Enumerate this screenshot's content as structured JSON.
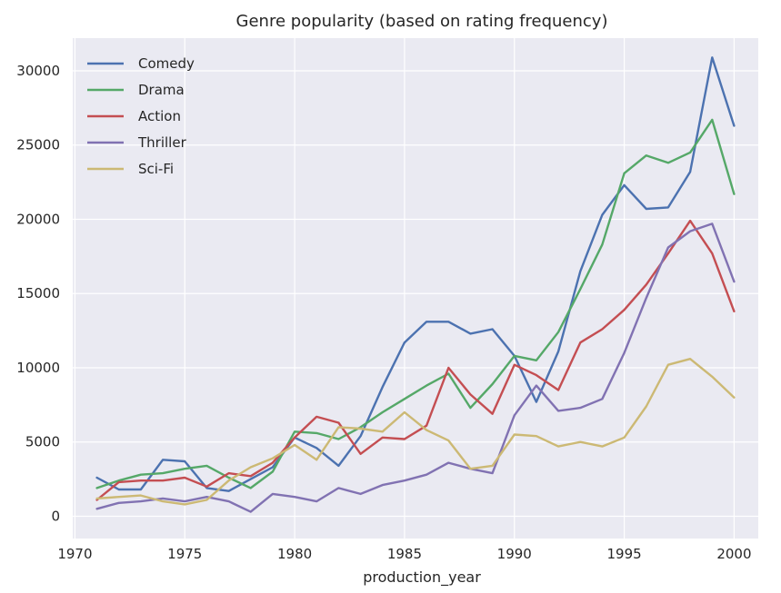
{
  "chart_data": {
    "type": "line",
    "title": "Genre popularity (based on rating frequency)",
    "xlabel": "production_year",
    "ylabel": "",
    "xlim": [
      1969.9,
      2001.1
    ],
    "ylim": [
      -1500,
      32200
    ],
    "xticks": [
      1970,
      1975,
      1980,
      1985,
      1990,
      1995,
      2000
    ],
    "xtick_labels": [
      "1970",
      "1975",
      "1980",
      "1985",
      "1990",
      "1995",
      "2000"
    ],
    "yticks": [
      0,
      5000,
      10000,
      15000,
      20000,
      25000,
      30000
    ],
    "ytick_labels": [
      "0",
      "5000",
      "10000",
      "15000",
      "20000",
      "25000",
      "30000"
    ],
    "grid": true,
    "legend_position": "top-left",
    "x": [
      1971,
      1972,
      1973,
      1974,
      1975,
      1976,
      1977,
      1978,
      1979,
      1980,
      1981,
      1982,
      1983,
      1984,
      1985,
      1986,
      1987,
      1988,
      1989,
      1990,
      1991,
      1992,
      1993,
      1994,
      1995,
      1996,
      1997,
      1998,
      1999,
      2000
    ],
    "series": [
      {
        "name": "Comedy",
        "color": "#4c72b0",
        "values": [
          2600,
          1800,
          1800,
          3800,
          3700,
          1900,
          1700,
          2500,
          3300,
          5300,
          4600,
          3400,
          5400,
          8700,
          11700,
          13100,
          13100,
          12300,
          12600,
          10800,
          7700,
          11100,
          16500,
          20300,
          22300,
          20700,
          20800,
          23200,
          30900,
          26300
        ]
      },
      {
        "name": "Drama",
        "color": "#55a868",
        "values": [
          1900,
          2400,
          2800,
          2900,
          3200,
          3400,
          2600,
          1900,
          3000,
          5700,
          5600,
          5200,
          6000,
          7000,
          7900,
          8800,
          9600,
          7300,
          8900,
          10800,
          10500,
          12400,
          15300,
          18300,
          23100,
          24300,
          23800,
          24500,
          26700,
          21700
        ]
      },
      {
        "name": "Action",
        "color": "#c44e52",
        "values": [
          1100,
          2300,
          2400,
          2400,
          2600,
          2000,
          2900,
          2700,
          3600,
          5300,
          6700,
          6300,
          4200,
          5300,
          5200,
          6100,
          10000,
          8200,
          6900,
          10200,
          9500,
          8500,
          11700,
          12600,
          13900,
          15600,
          17700,
          19900,
          17700,
          13800
        ]
      },
      {
        "name": "Thriller",
        "color": "#8172b2",
        "values": [
          500,
          900,
          1000,
          1200,
          1000,
          1300,
          1000,
          300,
          1500,
          1300,
          1000,
          1900,
          1500,
          2100,
          2400,
          2800,
          3600,
          3200,
          2900,
          6800,
          8800,
          7100,
          7300,
          7900,
          11000,
          14700,
          18100,
          19200,
          19700,
          15800
        ]
      },
      {
        "name": "Sci-Fi",
        "color": "#ccb974",
        "values": [
          1200,
          1300,
          1400,
          1000,
          800,
          1100,
          2400,
          3300,
          3900,
          4800,
          3800,
          6000,
          5900,
          5700,
          7000,
          5800,
          5100,
          3200,
          3400,
          5500,
          5400,
          4700,
          5000,
          4700,
          5300,
          7400,
          10200,
          10600,
          9400,
          8000
        ]
      }
    ]
  }
}
